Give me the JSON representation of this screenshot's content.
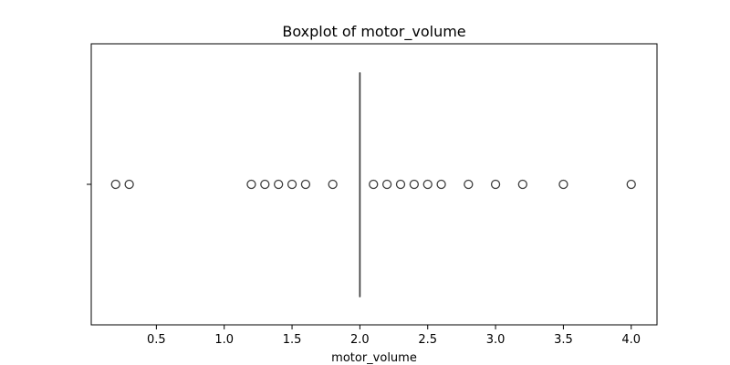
{
  "chart_data": {
    "type": "boxplot",
    "title": "Boxplot of motor_volume",
    "xlabel": "motor_volume",
    "ylabel": "",
    "orientation": "horizontal",
    "xlim": [
      0.02,
      4.19
    ],
    "xticks": [
      0.5,
      1.0,
      1.5,
      2.0,
      2.5,
      3.0,
      3.5,
      4.0
    ],
    "xtick_labels": [
      "0.5",
      "1.0",
      "1.5",
      "2.0",
      "2.5",
      "3.0",
      "3.5",
      "4.0"
    ],
    "grid": false,
    "box": {
      "q1": 2.0,
      "median": 2.0,
      "q3": 2.0,
      "whisker_low": 2.0,
      "whisker_high": 2.0
    },
    "outliers": [
      0.2,
      0.3,
      1.2,
      1.3,
      1.4,
      1.5,
      1.6,
      1.8,
      2.1,
      2.2,
      2.3,
      2.4,
      2.5,
      2.6,
      2.8,
      3.0,
      3.2,
      3.5,
      4.0
    ],
    "colors": {
      "box_line": "#3d3d3d",
      "outlier_edge": "#3d3d3d",
      "axes": "#000000"
    }
  }
}
